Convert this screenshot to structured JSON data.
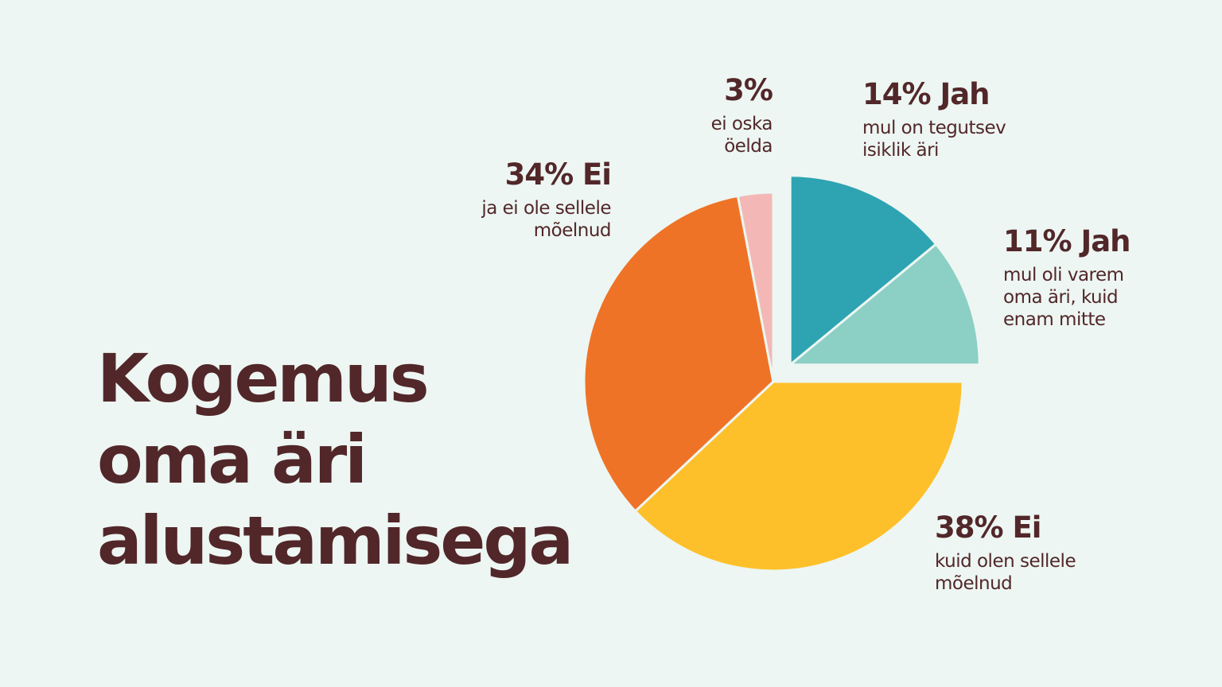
{
  "title_lines": [
    "Kogemus",
    "oma äri",
    "alustamisega"
  ],
  "chart_data": {
    "type": "pie",
    "title": "Kogemus oma äri alustamisega",
    "start_angle_deg": 0,
    "direction": "clockwise",
    "exploded_slices": [
      "s1",
      "s2"
    ],
    "slices": [
      {
        "id": "s1",
        "value": 14,
        "head": "14% Jah",
        "desc": [
          "mul on tegutsev",
          "isiklik äri"
        ],
        "color": "#2ea4b2"
      },
      {
        "id": "s2",
        "value": 11,
        "head": "11% Jah",
        "desc": [
          "mul oli varem",
          "oma äri, kuid",
          "enam mitte"
        ],
        "color": "#8bcfc5"
      },
      {
        "id": "s3",
        "value": 38,
        "head": "38% Ei",
        "desc": [
          "kuid olen sellele",
          "mõelnud"
        ],
        "color": "#fec02a"
      },
      {
        "id": "s4",
        "value": 34,
        "head": "34% Ei",
        "desc": [
          "ja ei ole sellele",
          "mõelnud"
        ],
        "color": "#ef7327"
      },
      {
        "id": "s5",
        "value": 3,
        "head": "3%",
        "desc": [
          "ei oska",
          "öelda"
        ],
        "color": "#f3b8b6"
      }
    ]
  }
}
